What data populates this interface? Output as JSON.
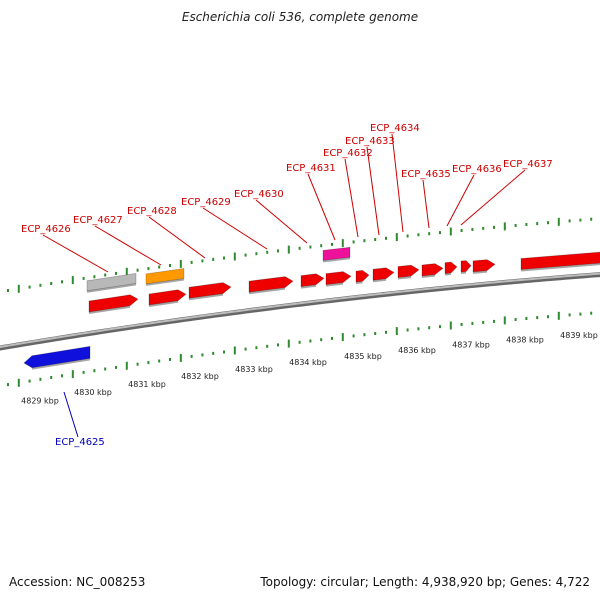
{
  "title": "Escherichia coli 536, complete genome",
  "footer": {
    "accession": "Accession: NC_008253",
    "topology": "Topology: circular; Length: 4,938,920 bp; Genes: 4,722"
  },
  "colors": {
    "backbone": "#8a8a8a",
    "tick": "#2e8b2e",
    "forward_gene": "#ee0000",
    "reverse_gene": "#1010dd",
    "forward_label": "#cc0000",
    "reverse_label": "#0000bb",
    "grey_gene": "#b8b8b8",
    "orange_gene": "#ff9900",
    "magenta_gene": "#ee1199"
  },
  "ruler": {
    "unit": "kbp",
    "labels": [
      "4829 kbp",
      "4830 kbp",
      "4831 kbp",
      "4832 kbp",
      "4833 kbp",
      "4834 kbp",
      "4835 kbp",
      "4836 kbp",
      "4837 kbp",
      "4838 kbp",
      "4839 kbp"
    ]
  },
  "gene_labels": {
    "forward": [
      "ECP_4626",
      "ECP_4627",
      "ECP_4628",
      "ECP_4629",
      "ECP_4630",
      "ECP_4631",
      "ECP_4632",
      "ECP_4633",
      "ECP_4634",
      "ECP_4635",
      "ECP_4636",
      "ECP_4637"
    ],
    "reverse": [
      "ECP_4625"
    ]
  }
}
